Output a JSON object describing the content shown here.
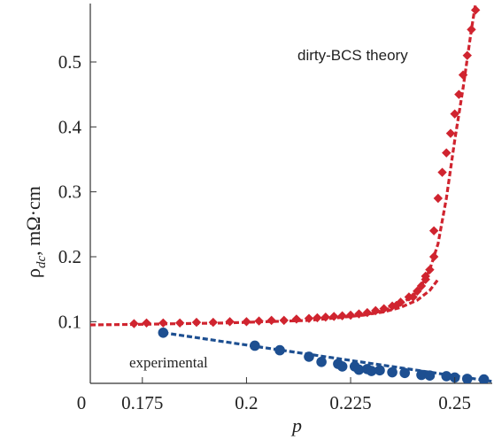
{
  "chart_data": {
    "type": "scatter",
    "title": "",
    "xlabel": "p",
    "ylabel_main": "ρ",
    "ylabel_sub": "dc",
    "ylabel_rest": ", mΩ·cm",
    "xlim": [
      0.1625,
      0.259
    ],
    "ylim": [
      0.005,
      0.59
    ],
    "x_origin_label": "0",
    "x_ticks": [
      {
        "value": 0.175,
        "label": "0.175"
      },
      {
        "value": 0.2,
        "label": "0.2"
      },
      {
        "value": 0.225,
        "label": "0.225"
      },
      {
        "value": 0.25,
        "label": "0.25"
      }
    ],
    "y_ticks": [
      {
        "value": 0.1,
        "label": "0.1"
      },
      {
        "value": 0.2,
        "label": "0.2"
      },
      {
        "value": 0.3,
        "label": "0.3"
      },
      {
        "value": 0.4,
        "label": "0.4"
      },
      {
        "value": 0.5,
        "label": "0.5"
      }
    ],
    "grid": false,
    "series": [
      {
        "name": "dirty-BCS theory",
        "color": "#d0242f",
        "marker": "diamond",
        "curve_x": [
          0.1625,
          0.175,
          0.185,
          0.195,
          0.205,
          0.215,
          0.222,
          0.228,
          0.233,
          0.237,
          0.24,
          0.242,
          0.244,
          0.246,
          0.248,
          0.25,
          0.252,
          0.254,
          0.255
        ],
        "curve_y": [
          0.095,
          0.096,
          0.097,
          0.098,
          0.1,
          0.102,
          0.106,
          0.11,
          0.117,
          0.127,
          0.14,
          0.155,
          0.18,
          0.22,
          0.29,
          0.38,
          0.46,
          0.55,
          0.59
        ],
        "curve2_x": [
          0.228,
          0.233,
          0.237,
          0.241,
          0.244,
          0.246
        ],
        "curve2_y": [
          0.11,
          0.115,
          0.122,
          0.133,
          0.148,
          0.165
        ],
        "points_x": [
          0.173,
          0.176,
          0.18,
          0.184,
          0.188,
          0.192,
          0.196,
          0.2,
          0.203,
          0.206,
          0.209,
          0.212,
          0.215,
          0.217,
          0.219,
          0.221,
          0.223,
          0.225,
          0.227,
          0.229,
          0.231,
          0.233,
          0.235,
          0.237,
          0.239,
          0.241,
          0.242,
          0.243,
          0.244,
          0.245,
          0.245,
          0.246,
          0.247,
          0.248,
          0.249,
          0.25,
          0.251,
          0.252,
          0.253,
          0.254,
          0.255,
          0.236,
          0.24,
          0.243
        ],
        "points_y": [
          0.097,
          0.098,
          0.098,
          0.098,
          0.099,
          0.099,
          0.1,
          0.1,
          0.101,
          0.102,
          0.102,
          0.104,
          0.105,
          0.106,
          0.107,
          0.108,
          0.109,
          0.11,
          0.112,
          0.114,
          0.117,
          0.12,
          0.124,
          0.13,
          0.138,
          0.147,
          0.155,
          0.165,
          0.18,
          0.2,
          0.24,
          0.29,
          0.33,
          0.36,
          0.39,
          0.42,
          0.45,
          0.48,
          0.51,
          0.55,
          0.58,
          0.125,
          0.138,
          0.17
        ]
      },
      {
        "name": "experimental",
        "color": "#1d4f91",
        "marker": "circle",
        "line_x": [
          0.18,
          0.259
        ],
        "line_y": [
          0.083,
          0.008
        ],
        "points_x": [
          0.18,
          0.202,
          0.208,
          0.215,
          0.218,
          0.222,
          0.223,
          0.226,
          0.227,
          0.229,
          0.23,
          0.232,
          0.235,
          0.238,
          0.242,
          0.244,
          0.248,
          0.25,
          0.253,
          0.257
        ],
        "points_y": [
          0.083,
          0.063,
          0.056,
          0.046,
          0.038,
          0.035,
          0.031,
          0.031,
          0.026,
          0.027,
          0.024,
          0.025,
          0.022,
          0.021,
          0.018,
          0.017,
          0.016,
          0.014,
          0.012,
          0.011
        ]
      }
    ]
  }
}
